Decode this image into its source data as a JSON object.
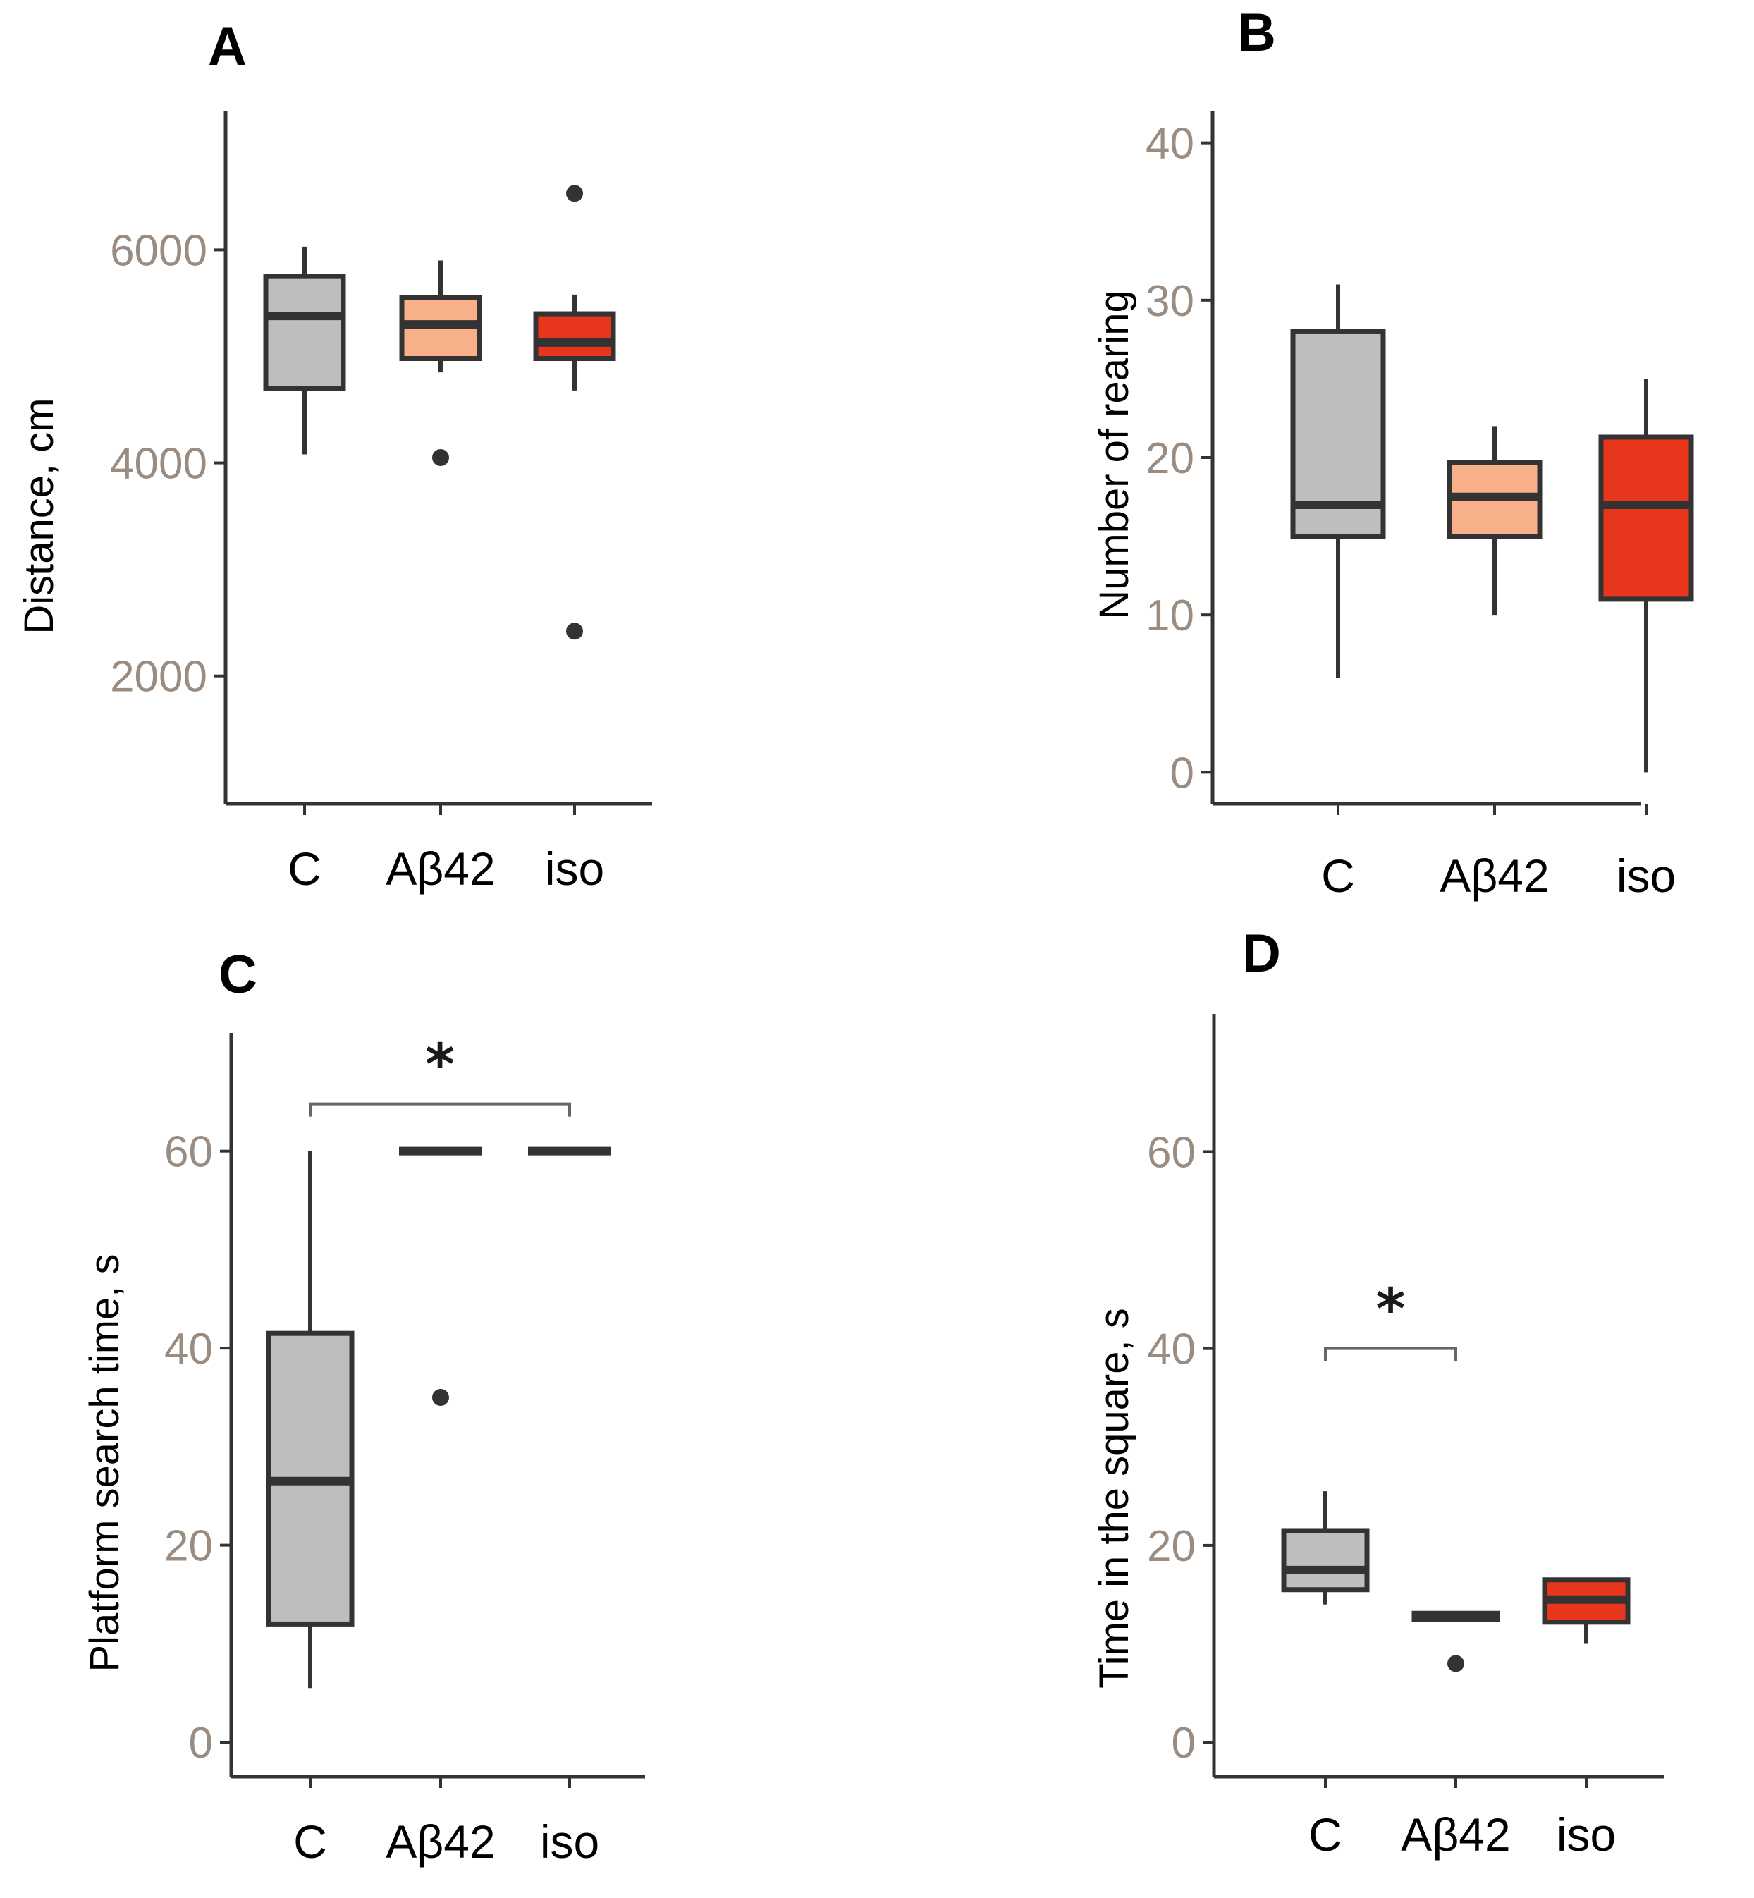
{
  "colors": {
    "C": "#bebebe",
    "Aβ42": "#f7b089",
    "iso": "#e8361d",
    "outline": "#333333"
  },
  "chart_data": [
    {
      "panel": "A",
      "type": "box",
      "ylabel": "Distance, cm",
      "ylim": [
        800,
        7300
      ],
      "yticks": [
        2000,
        4000,
        6000
      ],
      "yticklabels": [
        "2000",
        "4000",
        "6000"
      ],
      "categories": [
        "C",
        "Aβ42",
        "iso"
      ],
      "boxes": [
        {
          "category": "C",
          "whisker_low": 4080,
          "q1": 4700,
          "median": 5380,
          "q3": 5750,
          "whisker_high": 6030,
          "outliers": []
        },
        {
          "category": "Aβ42",
          "whisker_low": 4850,
          "q1": 4980,
          "median": 5300,
          "q3": 5550,
          "whisker_high": 5900,
          "outliers": [
            4050
          ]
        },
        {
          "category": "iso",
          "whisker_low": 4680,
          "q1": 4980,
          "median": 5130,
          "q3": 5400,
          "whisker_high": 5580,
          "outliers": [
            6530,
            2420
          ]
        }
      ],
      "significance": []
    },
    {
      "panel": "B",
      "type": "box",
      "ylabel": "Number of rearing",
      "ylim": [
        -2,
        42
      ],
      "yticks": [
        0,
        10,
        20,
        30,
        40
      ],
      "yticklabels": [
        "0",
        "10",
        "20",
        "30",
        "40"
      ],
      "categories": [
        "C",
        "Aβ42",
        "iso"
      ],
      "boxes": [
        {
          "category": "C",
          "whisker_low": 6,
          "q1": 15,
          "median": 17,
          "q3": 28,
          "whisker_high": 31,
          "outliers": []
        },
        {
          "category": "Aβ42",
          "whisker_low": 10,
          "q1": 15,
          "median": 17.5,
          "q3": 19.7,
          "whisker_high": 22,
          "outliers": []
        },
        {
          "category": "iso",
          "whisker_low": 0,
          "q1": 11,
          "median": 17,
          "q3": 21.3,
          "whisker_high": 25,
          "outliers": []
        }
      ],
      "significance": []
    },
    {
      "panel": "C",
      "type": "box",
      "ylabel": "Platform search time, s",
      "ylim": [
        -3.5,
        72
      ],
      "yticks": [
        0,
        20,
        40,
        60
      ],
      "yticklabels": [
        "0",
        "20",
        "40",
        "60"
      ],
      "categories": [
        "C",
        "Aβ42",
        "iso"
      ],
      "boxes": [
        {
          "category": "C",
          "whisker_low": 5.5,
          "q1": 12,
          "median": 26.5,
          "q3": 41.5,
          "whisker_high": 60,
          "outliers": []
        },
        {
          "category": "Aβ42",
          "whisker_low": 60,
          "q1": 60,
          "median": 60,
          "q3": 60,
          "whisker_high": 60,
          "outliers": [
            35
          ]
        },
        {
          "category": "iso",
          "whisker_low": 60,
          "q1": 60,
          "median": 60,
          "q3": 60,
          "whisker_high": 60,
          "outliers": []
        }
      ],
      "significance": [
        {
          "from": "C",
          "to": "iso",
          "y": 64.8,
          "label": "*"
        }
      ]
    },
    {
      "panel": "D",
      "type": "box",
      "ylabel": "Time in the square, s",
      "ylim": [
        -3.5,
        74
      ],
      "yticks": [
        0,
        20,
        40,
        60
      ],
      "yticklabels": [
        "0",
        "20",
        "40",
        "60"
      ],
      "categories": [
        "C",
        "Aβ42",
        "iso"
      ],
      "boxes": [
        {
          "category": "C",
          "whisker_low": 14,
          "q1": 15.5,
          "median": 17.5,
          "q3": 21.5,
          "whisker_high": 25.5,
          "outliers": []
        },
        {
          "category": "Aβ42",
          "whisker_low": 12.5,
          "q1": 12.5,
          "median": 12.8,
          "q3": 13.1,
          "whisker_high": 13.1,
          "outliers": [
            8
          ]
        },
        {
          "category": "iso",
          "whisker_low": 10,
          "q1": 12.2,
          "median": 14.5,
          "q3": 16.5,
          "whisker_high": 16.5,
          "outliers": []
        }
      ],
      "significance": [
        {
          "from": "C",
          "to": "Aβ42",
          "y": 40,
          "label": "*"
        }
      ]
    }
  ]
}
